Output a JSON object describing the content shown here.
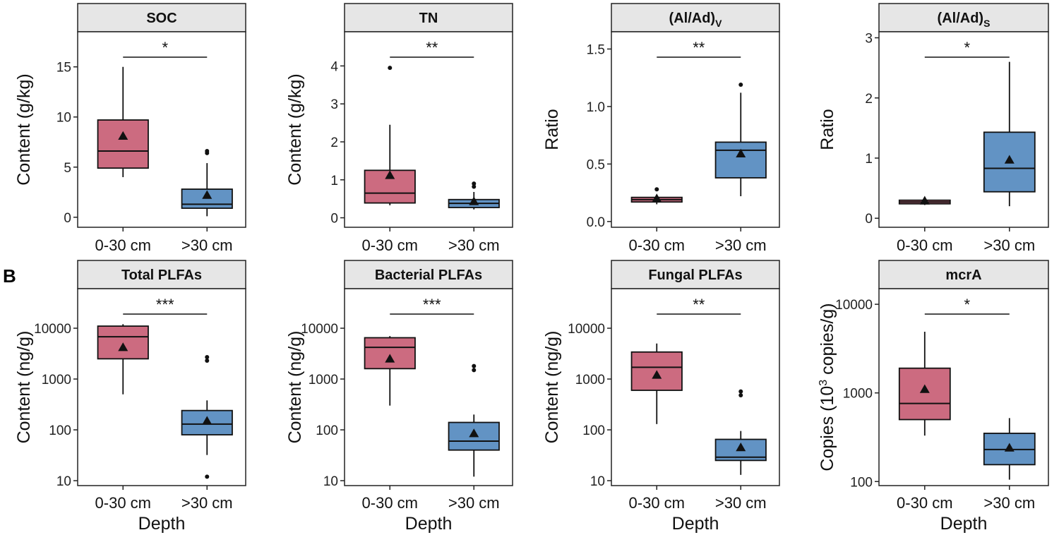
{
  "figure": {
    "panel_label": "B",
    "x_axis_title": "Depth"
  },
  "colors": {
    "shallow": "#cc6b80",
    "deep": "#6293c4",
    "strip_fill": "#e6e6e6",
    "frame": "#222222"
  },
  "chart_data": [
    {
      "type": "box",
      "title": "SOC",
      "ylabel": "Content (g/kg)",
      "scale": "linear",
      "ylim": [
        -1.0,
        18.5
      ],
      "ticks": [
        0,
        5,
        10,
        15
      ],
      "tick_labels": [
        "0",
        "5",
        "10",
        "15"
      ],
      "categories": [
        "0-30 cm",
        ">30 cm"
      ],
      "significance": "*",
      "groups": [
        {
          "name": "0-30 cm",
          "q1": 4.9,
          "median": 6.6,
          "q3": 9.7,
          "whisker_low": 4.0,
          "whisker_high": 15.0,
          "mean": 8.1,
          "outliers": []
        },
        {
          "name": ">30 cm",
          "q1": 0.9,
          "median": 1.3,
          "q3": 2.8,
          "whisker_low": 0.1,
          "whisker_high": 5.4,
          "mean": 2.2,
          "outliers": [
            6.4,
            6.6
          ]
        }
      ]
    },
    {
      "type": "box",
      "title": "TN",
      "ylabel": "Content (g/kg)",
      "scale": "linear",
      "ylim": [
        -0.25,
        4.9
      ],
      "ticks": [
        0,
        1,
        2,
        3,
        4
      ],
      "tick_labels": [
        "0",
        "1",
        "2",
        "3",
        "4"
      ],
      "categories": [
        "0-30 cm",
        ">30 cm"
      ],
      "significance": "**",
      "groups": [
        {
          "name": "0-30 cm",
          "q1": 0.39,
          "median": 0.65,
          "q3": 1.25,
          "whisker_low": 0.33,
          "whisker_high": 2.45,
          "mean": 1.12,
          "outliers": [
            3.95
          ]
        },
        {
          "name": ">30 cm",
          "q1": 0.27,
          "median": 0.38,
          "q3": 0.48,
          "whisker_low": 0.22,
          "whisker_high": 0.68,
          "mean": 0.43,
          "outliers": [
            0.82,
            0.9
          ]
        }
      ]
    },
    {
      "type": "box",
      "title": "(Al/Ad)V",
      "title_main": "(Al/Ad)",
      "title_sub": "V",
      "ylabel": "Ratio",
      "scale": "linear",
      "ylim": [
        -0.05,
        1.65
      ],
      "ticks": [
        0.0,
        0.5,
        1.0,
        1.5
      ],
      "tick_labels": [
        "0.0",
        "0.5",
        "1.0",
        "1.5"
      ],
      "categories": [
        "0-30 cm",
        ">30 cm"
      ],
      "significance": "**",
      "groups": [
        {
          "name": "0-30 cm",
          "q1": 0.17,
          "median": 0.19,
          "q3": 0.21,
          "whisker_low": 0.15,
          "whisker_high": 0.22,
          "mean": 0.2,
          "outliers": [
            0.28
          ]
        },
        {
          "name": ">30 cm",
          "q1": 0.38,
          "median": 0.62,
          "q3": 0.69,
          "whisker_low": 0.22,
          "whisker_high": 1.12,
          "mean": 0.59,
          "outliers": [
            1.19
          ]
        }
      ]
    },
    {
      "type": "box",
      "title": "(Al/Ad)S",
      "title_main": "(Al/Ad)",
      "title_sub": "S",
      "ylabel": "Ratio",
      "scale": "linear",
      "ylim": [
        -0.15,
        3.1
      ],
      "ticks": [
        0,
        1,
        2,
        3
      ],
      "tick_labels": [
        "0",
        "1",
        "2",
        "3"
      ],
      "categories": [
        "0-30 cm",
        ">30 cm"
      ],
      "significance": "*",
      "groups": [
        {
          "name": "0-30 cm",
          "q1": 0.24,
          "median": 0.27,
          "q3": 0.3,
          "whisker_low": 0.22,
          "whisker_high": 0.32,
          "mean": 0.29,
          "outliers": []
        },
        {
          "name": ">30 cm",
          "q1": 0.44,
          "median": 0.83,
          "q3": 1.43,
          "whisker_low": 0.2,
          "whisker_high": 2.6,
          "mean": 0.97,
          "outliers": []
        }
      ]
    },
    {
      "type": "box",
      "title": "Total PLFAs",
      "ylabel": "Content (ng/g)",
      "scale": "log",
      "ylim": [
        8.0,
        60000
      ],
      "ticks": [
        10,
        100,
        1000,
        10000
      ],
      "tick_labels": [
        "10",
        "100",
        "1000",
        "10000"
      ],
      "categories": [
        "0-30 cm",
        ">30 cm"
      ],
      "significance": "***",
      "groups": [
        {
          "name": "0-30 cm",
          "q1": 2500,
          "median": 6800,
          "q3": 11000,
          "whisker_low": 500,
          "whisker_high": 12000,
          "mean": 4200,
          "outliers": []
        },
        {
          "name": ">30 cm",
          "q1": 80,
          "median": 130,
          "q3": 240,
          "whisker_low": 32,
          "whisker_high": 380,
          "mean": 150,
          "outliers": [
            12,
            2300,
            2700
          ]
        }
      ]
    },
    {
      "type": "box",
      "title": "Bacterial PLFAs",
      "ylabel": "Content (ng/g)",
      "scale": "log",
      "ylim": [
        8.0,
        60000
      ],
      "ticks": [
        10,
        100,
        1000,
        10000
      ],
      "tick_labels": [
        "10",
        "100",
        "1000",
        "10000"
      ],
      "categories": [
        "0-30 cm",
        ">30 cm"
      ],
      "significance": "***",
      "groups": [
        {
          "name": "0-30 cm",
          "q1": 1600,
          "median": 4200,
          "q3": 6500,
          "whisker_low": 300,
          "whisker_high": 7000,
          "mean": 2500,
          "outliers": []
        },
        {
          "name": ">30 cm",
          "q1": 40,
          "median": 60,
          "q3": 140,
          "whisker_low": 12,
          "whisker_high": 200,
          "mean": 85,
          "outliers": [
            1500,
            1800
          ]
        }
      ]
    },
    {
      "type": "box",
      "title": "Fungal PLFAs",
      "ylabel": "Content (ng/g)",
      "scale": "log",
      "ylim": [
        8.0,
        60000
      ],
      "ticks": [
        10,
        100,
        1000,
        10000
      ],
      "tick_labels": [
        "10",
        "100",
        "1000",
        "10000"
      ],
      "categories": [
        "0-30 cm",
        ">30 cm"
      ],
      "significance": "**",
      "groups": [
        {
          "name": "0-30 cm",
          "q1": 600,
          "median": 1700,
          "q3": 3400,
          "whisker_low": 130,
          "whisker_high": 5000,
          "mean": 1200,
          "outliers": []
        },
        {
          "name": ">30 cm",
          "q1": 25,
          "median": 29,
          "q3": 65,
          "whisker_low": 13,
          "whisker_high": 95,
          "mean": 45,
          "outliers": [
            480,
            570
          ]
        }
      ]
    },
    {
      "type": "box",
      "title": "mcrA",
      "ylabel": "Copies (10³ copies/g)",
      "ylabel_main": "Copies (10",
      "ylabel_sup": "3",
      "ylabel_end": " copies/g)",
      "scale": "log",
      "ylim": [
        90,
        15000
      ],
      "ticks": [
        100,
        1000,
        10000
      ],
      "tick_labels": [
        "100",
        "1000",
        "10000"
      ],
      "categories": [
        "0-30 cm",
        ">30 cm"
      ],
      "significance": "*",
      "groups": [
        {
          "name": "0-30 cm",
          "q1": 500,
          "median": 760,
          "q3": 1900,
          "whisker_low": 330,
          "whisker_high": 4900,
          "mean": 1100,
          "outliers": []
        },
        {
          "name": ">30 cm",
          "q1": 155,
          "median": 230,
          "q3": 350,
          "whisker_low": 105,
          "whisker_high": 520,
          "mean": 240,
          "outliers": []
        }
      ]
    }
  ]
}
